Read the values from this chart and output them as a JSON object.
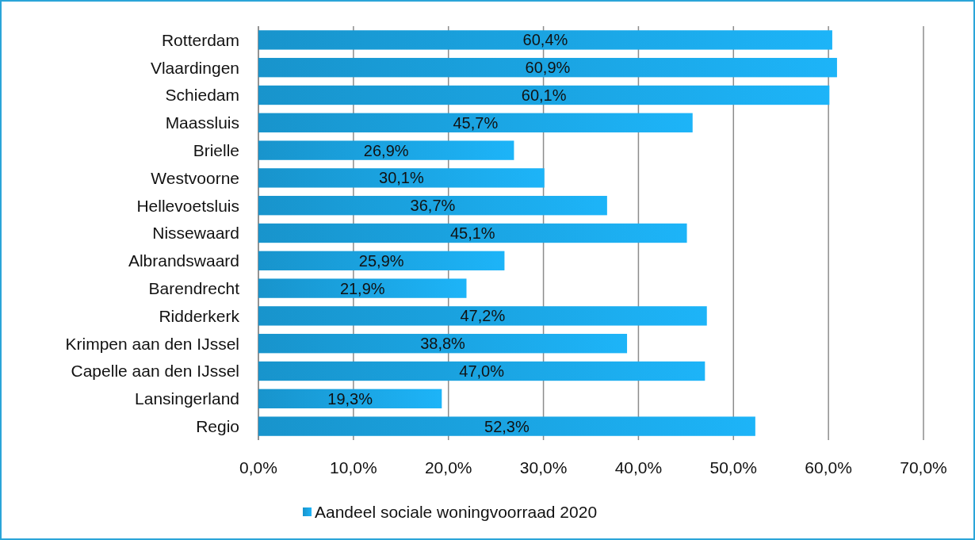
{
  "chart_data": {
    "type": "bar",
    "orientation": "horizontal",
    "categories": [
      "Rotterdam",
      "Vlaardingen",
      "Schiedam",
      "Maassluis",
      "Brielle",
      "Westvoorne",
      "Hellevoetsluis",
      "Nissewaard",
      "Albrandswaard",
      "Barendrecht",
      "Ridderkerk",
      "Krimpen aan den IJssel",
      "Capelle aan den IJssel",
      "Lansingerland",
      "Regio"
    ],
    "series": [
      {
        "name": "Aandeel sociale woningvoorraad  2020",
        "color": "#1a9fdb",
        "values": [
          60.4,
          60.9,
          60.1,
          45.7,
          26.9,
          30.1,
          36.7,
          45.1,
          25.9,
          21.9,
          47.2,
          38.8,
          47.0,
          19.3,
          52.3
        ],
        "value_labels": [
          "60,4%",
          "60,9%",
          "60,1%",
          "45,7%",
          "26,9%",
          "30,1%",
          "36,7%",
          "45,1%",
          "25,9%",
          "21,9%",
          "47,2%",
          "38,8%",
          "47,0%",
          "19,3%",
          "52,3%"
        ]
      }
    ],
    "xlim": [
      0,
      70
    ],
    "xticks": [
      {
        "value": 0,
        "label": "0,0%"
      },
      {
        "value": 10,
        "label": "10,0%"
      },
      {
        "value": 20,
        "label": "20,0%"
      },
      {
        "value": 30,
        "label": "30,0%"
      },
      {
        "value": 40,
        "label": "40,0%"
      },
      {
        "value": 50,
        "label": "50,0%"
      },
      {
        "value": 60,
        "label": "60,0%"
      },
      {
        "value": 70,
        "label": "70,0%"
      }
    ],
    "grid": "x",
    "legend": "bottom"
  }
}
